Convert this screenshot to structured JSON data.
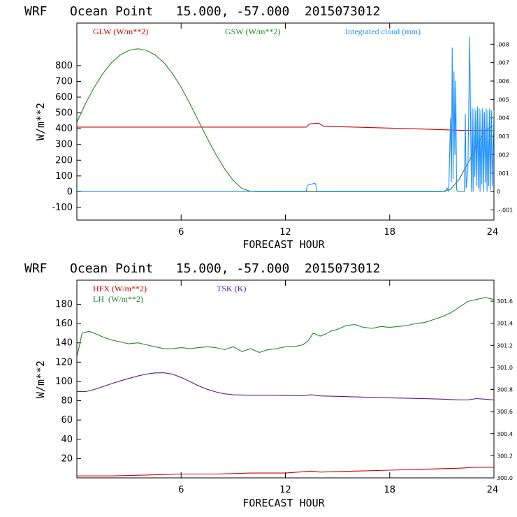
{
  "chart_data": [
    {
      "type": "line",
      "title": "WRF   Ocean Point   15.000, -57.000  2015073012",
      "xlabel": "FORECAST HOUR",
      "ylabel": "W/m**2",
      "xlim": [
        0,
        24
      ],
      "ylim": [
        -180,
        1070
      ],
      "y2lim": [
        -0.00155,
        0.00915
      ],
      "xticks": [
        6,
        12,
        18,
        24
      ],
      "xtick_labels": [
        "6",
        "12",
        "18",
        "24"
      ],
      "yticks": [
        -100,
        0,
        100,
        200,
        300,
        400,
        500,
        600,
        700,
        800
      ],
      "ytick_labels": [
        "-100",
        "0",
        "100",
        "200",
        "300",
        "400",
        "500",
        "600",
        "700",
        "800"
      ],
      "y2ticks": [
        -0.001,
        0,
        0.001,
        0.002,
        0.003,
        0.004,
        0.005,
        0.006,
        0.007,
        0.008
      ],
      "y2tick_labels": [
        ".-.001",
        "0",
        ".001",
        ".002",
        ".003",
        ".004",
        ".005",
        ".006",
        ".007",
        ".008"
      ],
      "legend": [
        {
          "label": "GLW (W/m**2)",
          "color": "#cc0000"
        },
        {
          "label": "GSW (W/m**2)",
          "color": "#228822"
        },
        {
          "label": "Integrated cloud (mm)",
          "color": "#1e90ff"
        }
      ],
      "series": [
        {
          "name": "GLW",
          "color": "#cc0000",
          "axis": "left",
          "x": [
            0,
            4,
            8,
            12,
            13.2,
            13.4,
            13.9,
            14.2,
            16,
            20,
            22,
            24
          ],
          "y": [
            410,
            410,
            410,
            410,
            410,
            430,
            435,
            415,
            410,
            397,
            390,
            388
          ]
        },
        {
          "name": "GSW",
          "color": "#228822",
          "axis": "left",
          "x": [
            0,
            0.5,
            1,
            1.5,
            2,
            2.5,
            3,
            3.5,
            4,
            4.5,
            5,
            5.5,
            6,
            6.5,
            7,
            7.5,
            8,
            8.5,
            9,
            9.5,
            10,
            10.3,
            11,
            12,
            14,
            16,
            18,
            20,
            21,
            21.5,
            22,
            22.5,
            23,
            23.5,
            24
          ],
          "y": [
            440,
            560,
            662,
            750,
            820,
            868,
            897,
            907,
            897,
            868,
            820,
            750,
            662,
            560,
            450,
            339,
            237,
            146,
            71,
            20,
            2,
            0,
            0,
            0,
            0,
            0,
            0,
            0,
            0,
            15,
            80,
            180,
            290,
            390,
            420
          ]
        },
        {
          "name": "Integrated cloud",
          "color": "#1e90ff",
          "axis": "right",
          "x": [
            0,
            13.2,
            13.25,
            13.3,
            13.5,
            13.7,
            13.75,
            13.8,
            21.2,
            21.3,
            21.4,
            21.5,
            21.55,
            21.6,
            21.65,
            21.7,
            21.75,
            21.8,
            21.85,
            21.9,
            21.95,
            22.0,
            22.1,
            22.3,
            22.35,
            22.4,
            22.5,
            22.55,
            22.6,
            22.7,
            22.75,
            22.8,
            22.85,
            22.9,
            22.95,
            23.0,
            23.05,
            23.1,
            23.15,
            23.2,
            23.25,
            23.3,
            23.35,
            23.4,
            23.45,
            23.5,
            23.55,
            23.6,
            23.65,
            23.7,
            23.75,
            23.8,
            23.85,
            23.9,
            24
          ],
          "y": [
            0,
            0,
            0.0003,
            0.00035,
            0.0004,
            0.00045,
            0.0004,
            0,
            0,
            0.0002,
            0,
            0.004,
            0.0005,
            0.0078,
            0.0007,
            0.0065,
            0.002,
            0.006,
            0.0001,
            0,
            0,
            0,
            0,
            0,
            0.0042,
            0.0002,
            0.0012,
            0.0043,
            0.0084,
            0,
            0.0045,
            0,
            0.0045,
            0.0008,
            0.0044,
            0.0003,
            0.0046,
            0.0002,
            0.0045,
            0,
            0.0044,
            0.0004,
            0.0045,
            0,
            0.0043,
            0.0005,
            0.0045,
            0,
            0.0044,
            0.0003,
            0.0045,
            0.0001,
            0.0044,
            0.0003,
            0.0044
          ]
        }
      ]
    },
    {
      "type": "line",
      "title": "WRF   Ocean Point   15.000, -57.000  2015073012",
      "xlabel": "FORECAST HOUR",
      "ylabel": "W/m**2",
      "xlim": [
        0,
        24
      ],
      "ylim": [
        0,
        205
      ],
      "y2lim": [
        300.0,
        301.79
      ],
      "xticks": [
        6,
        12,
        18,
        24
      ],
      "xtick_labels": [
        "6",
        "12",
        "18",
        "24"
      ],
      "yticks": [
        20,
        40,
        60,
        80,
        100,
        120,
        140,
        160,
        180
      ],
      "ytick_labels": [
        "20",
        "40",
        "60",
        "80",
        "100",
        "120",
        "140",
        "160",
        "180"
      ],
      "y2ticks": [
        300.0,
        300.2,
        300.4,
        300.6,
        300.8,
        301.0,
        301.2,
        301.4,
        301.6
      ],
      "y2tick_labels": [
        "300.0",
        "300.2",
        "300.4",
        "300.6",
        "300.8",
        "301.0",
        "301.2",
        "301.4",
        "301.6"
      ],
      "legend": [
        {
          "label": "HFX (W/m**2)",
          "color": "#cc0000"
        },
        {
          "label": "LH  (W/m**2)",
          "color": "#228822"
        },
        {
          "label": "TSK (K)",
          "color": "#551a8b"
        }
      ],
      "series": [
        {
          "name": "HFX",
          "color": "#cc0000",
          "axis": "left",
          "x": [
            0,
            2,
            4,
            6,
            8,
            10,
            12,
            13.5,
            14,
            16,
            18,
            20,
            22,
            23,
            24
          ],
          "y": [
            2,
            2,
            3,
            4,
            4,
            5,
            5,
            7,
            6,
            7,
            8,
            9,
            10,
            11,
            11
          ]
        },
        {
          "name": "LH",
          "color": "#228822",
          "axis": "left",
          "x": [
            0,
            0.3,
            0.7,
            1,
            1.5,
            2,
            2.5,
            3,
            3.5,
            4,
            4.5,
            5,
            5.5,
            6,
            6.5,
            7,
            7.5,
            8,
            8.5,
            9,
            9.5,
            10,
            10.5,
            11,
            11.5,
            12,
            12.5,
            13,
            13.3,
            13.6,
            14,
            14.3,
            14.6,
            15,
            15.5,
            16,
            16.5,
            17,
            17.5,
            18,
            18.5,
            19,
            19.5,
            20,
            20.5,
            21,
            21.5,
            22,
            22.5,
            23,
            23.5,
            24
          ],
          "y": [
            125,
            150,
            152,
            150,
            146,
            143,
            141,
            139,
            140,
            138,
            136,
            134,
            134,
            135,
            134,
            135,
            136,
            135,
            133,
            136,
            131,
            134,
            130,
            133,
            134,
            136,
            136,
            138,
            142,
            150,
            147,
            149,
            152,
            154,
            158,
            159,
            156,
            155,
            157,
            156,
            157,
            158,
            160,
            161,
            164,
            167,
            171,
            177,
            183,
            185,
            187,
            185
          ]
        },
        {
          "name": "TSK",
          "color": "#551a8b",
          "axis": "right",
          "x": [
            0,
            0.5,
            1,
            1.5,
            2,
            2.5,
            3,
            3.5,
            4,
            4.5,
            5,
            5.5,
            6,
            6.5,
            7,
            7.5,
            8,
            8.5,
            9,
            9.5,
            10,
            11,
            12,
            13,
            13.5,
            14,
            15,
            16,
            18,
            20,
            21,
            22,
            22.5,
            23,
            23.5,
            24
          ],
          "y": [
            300.782,
            300.781,
            300.8,
            300.826,
            300.853,
            300.878,
            300.9,
            300.922,
            300.939,
            300.95,
            300.951,
            300.939,
            300.909,
            300.873,
            300.833,
            300.802,
            300.778,
            300.761,
            300.753,
            300.75,
            300.749,
            300.749,
            300.747,
            300.745,
            300.752,
            300.742,
            300.738,
            300.733,
            300.725,
            300.717,
            300.713,
            300.706,
            300.706,
            300.718,
            300.712,
            300.706
          ]
        }
      ]
    }
  ]
}
